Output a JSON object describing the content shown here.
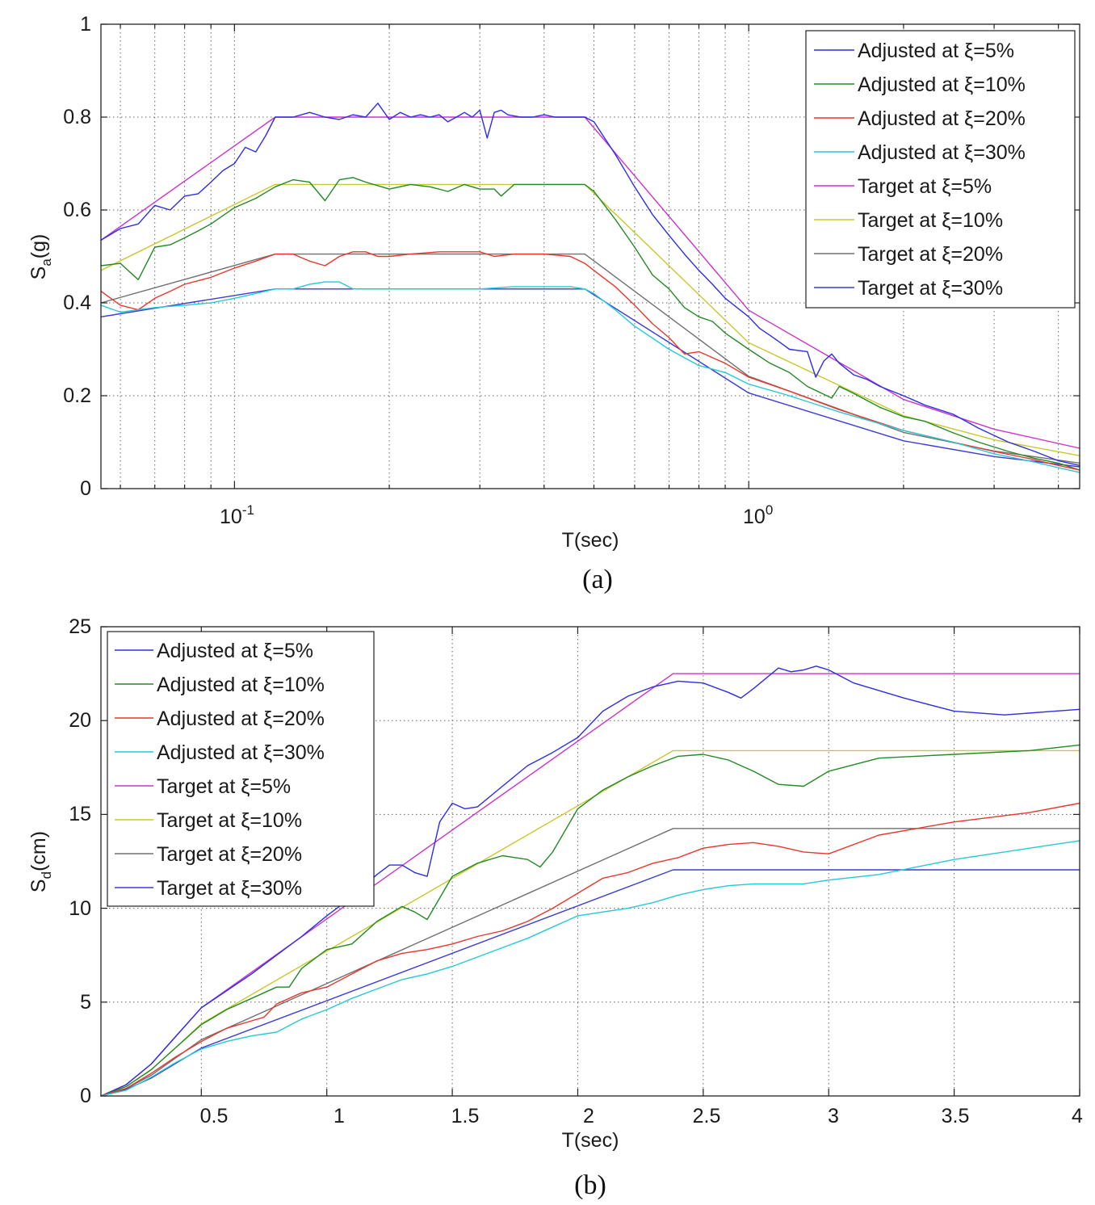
{
  "chart_data": [
    {
      "type": "line",
      "caption": "(a)",
      "xlabel": "T(sec)",
      "ylabel": "S",
      "ylabel_sub": "a",
      "ylabel_unit": "(g)",
      "xscale": "log",
      "xlim": [
        0.055,
        4.4
      ],
      "ylim": [
        0,
        1
      ],
      "xticks": [
        {
          "base": "10",
          "exp": "-1",
          "value": 0.1
        },
        {
          "base": "10",
          "exp": "0",
          "value": 1
        }
      ],
      "yticks": [
        "0",
        "0.2",
        "0.4",
        "0.6",
        "0.8",
        "1"
      ],
      "grid": true,
      "legend_position": "top-right",
      "series": [
        {
          "name": "Adjusted at ξ=5%",
          "color": "#2d2de8",
          "x": [
            0.055,
            0.06,
            0.065,
            0.07,
            0.075,
            0.08,
            0.085,
            0.09,
            0.095,
            0.1,
            0.105,
            0.11,
            0.115,
            0.12,
            0.13,
            0.14,
            0.15,
            0.16,
            0.17,
            0.18,
            0.19,
            0.2,
            0.21,
            0.22,
            0.23,
            0.24,
            0.25,
            0.26,
            0.27,
            0.28,
            0.29,
            0.3,
            0.31,
            0.32,
            0.33,
            0.34,
            0.36,
            0.38,
            0.4,
            0.42,
            0.45,
            0.48,
            0.5,
            0.55,
            0.6,
            0.65,
            0.7,
            0.75,
            0.8,
            0.85,
            0.9,
            1.0,
            1.05,
            1.1,
            1.15,
            1.2,
            1.3,
            1.35,
            1.4,
            1.45,
            1.5,
            1.6,
            1.7,
            1.8,
            2.0,
            2.2,
            2.5,
            2.8,
            3.2,
            3.6,
            4.0,
            4.4
          ],
          "y": [
            0.535,
            0.56,
            0.57,
            0.61,
            0.6,
            0.63,
            0.635,
            0.66,
            0.685,
            0.7,
            0.735,
            0.725,
            0.76,
            0.8,
            0.8,
            0.81,
            0.8,
            0.795,
            0.805,
            0.8,
            0.83,
            0.795,
            0.81,
            0.8,
            0.805,
            0.8,
            0.805,
            0.79,
            0.8,
            0.81,
            0.8,
            0.815,
            0.755,
            0.81,
            0.815,
            0.805,
            0.8,
            0.8,
            0.805,
            0.8,
            0.8,
            0.8,
            0.79,
            0.72,
            0.65,
            0.59,
            0.545,
            0.505,
            0.47,
            0.44,
            0.41,
            0.37,
            0.345,
            0.33,
            0.315,
            0.3,
            0.295,
            0.24,
            0.275,
            0.29,
            0.27,
            0.245,
            0.235,
            0.22,
            0.2,
            0.18,
            0.16,
            0.13,
            0.1,
            0.08,
            0.06,
            0.05
          ]
        },
        {
          "name": "Adjusted at ξ=10%",
          "color": "#238a23",
          "x": [
            0.055,
            0.06,
            0.065,
            0.07,
            0.075,
            0.08,
            0.085,
            0.09,
            0.1,
            0.11,
            0.12,
            0.13,
            0.14,
            0.15,
            0.16,
            0.17,
            0.18,
            0.2,
            0.22,
            0.24,
            0.26,
            0.28,
            0.3,
            0.32,
            0.33,
            0.35,
            0.38,
            0.4,
            0.45,
            0.48,
            0.5,
            0.55,
            0.6,
            0.65,
            0.7,
            0.75,
            0.8,
            0.85,
            0.9,
            1.0,
            1.1,
            1.2,
            1.3,
            1.45,
            1.5,
            1.6,
            1.8,
            2.0,
            2.2,
            2.5,
            2.8,
            3.2,
            3.6,
            4.0,
            4.4
          ],
          "y": [
            0.48,
            0.485,
            0.45,
            0.52,
            0.525,
            0.54,
            0.555,
            0.57,
            0.605,
            0.625,
            0.65,
            0.665,
            0.66,
            0.62,
            0.665,
            0.67,
            0.66,
            0.645,
            0.655,
            0.65,
            0.64,
            0.655,
            0.645,
            0.645,
            0.63,
            0.655,
            0.655,
            0.655,
            0.655,
            0.655,
            0.64,
            0.58,
            0.52,
            0.46,
            0.43,
            0.39,
            0.37,
            0.36,
            0.335,
            0.3,
            0.27,
            0.25,
            0.22,
            0.195,
            0.22,
            0.205,
            0.175,
            0.155,
            0.145,
            0.12,
            0.1,
            0.08,
            0.065,
            0.055,
            0.04
          ]
        },
        {
          "name": "Adjusted at ξ=20%",
          "color": "#e8372d",
          "x": [
            0.055,
            0.06,
            0.065,
            0.07,
            0.075,
            0.08,
            0.09,
            0.1,
            0.11,
            0.12,
            0.13,
            0.14,
            0.15,
            0.16,
            0.17,
            0.18,
            0.19,
            0.2,
            0.22,
            0.25,
            0.28,
            0.3,
            0.32,
            0.35,
            0.4,
            0.45,
            0.48,
            0.5,
            0.55,
            0.6,
            0.65,
            0.7,
            0.75,
            0.8,
            0.9,
            1.0,
            1.2,
            1.5,
            2.0,
            2.5,
            3.0,
            3.5,
            4.0,
            4.4
          ],
          "y": [
            0.425,
            0.395,
            0.385,
            0.41,
            0.425,
            0.44,
            0.455,
            0.475,
            0.49,
            0.505,
            0.505,
            0.49,
            0.48,
            0.5,
            0.51,
            0.51,
            0.5,
            0.5,
            0.505,
            0.51,
            0.51,
            0.51,
            0.5,
            0.505,
            0.505,
            0.5,
            0.485,
            0.47,
            0.435,
            0.395,
            0.355,
            0.325,
            0.29,
            0.295,
            0.27,
            0.24,
            0.21,
            0.17,
            0.125,
            0.1,
            0.08,
            0.065,
            0.05,
            0.04
          ]
        },
        {
          "name": "Adjusted at ξ=30%",
          "color": "#25c9d6",
          "x": [
            0.055,
            0.06,
            0.065,
            0.07,
            0.08,
            0.09,
            0.1,
            0.11,
            0.12,
            0.13,
            0.14,
            0.15,
            0.16,
            0.17,
            0.18,
            0.2,
            0.25,
            0.3,
            0.35,
            0.4,
            0.45,
            0.48,
            0.5,
            0.55,
            0.6,
            0.7,
            0.8,
            0.9,
            1.0,
            1.2,
            1.5,
            2.0,
            2.5,
            3.0,
            3.5,
            4.0,
            4.4
          ],
          "y": [
            0.395,
            0.38,
            0.385,
            0.39,
            0.395,
            0.4,
            0.41,
            0.42,
            0.43,
            0.43,
            0.44,
            0.445,
            0.445,
            0.43,
            0.43,
            0.43,
            0.43,
            0.43,
            0.435,
            0.435,
            0.435,
            0.43,
            0.42,
            0.385,
            0.35,
            0.3,
            0.265,
            0.25,
            0.225,
            0.2,
            0.165,
            0.125,
            0.1,
            0.075,
            0.06,
            0.045,
            0.035
          ]
        },
        {
          "name": "Target at ξ=5%",
          "color": "#cc33cc",
          "x": [
            0.055,
            0.12,
            0.48,
            1.0,
            2.0,
            3.0,
            4.4
          ],
          "y": [
            0.535,
            0.8,
            0.8,
            0.384,
            0.192,
            0.128,
            0.087
          ]
        },
        {
          "name": "Target at ξ=10%",
          "color": "#c9c92c",
          "x": [
            0.055,
            0.12,
            0.48,
            1.0,
            2.0,
            3.0,
            4.4
          ],
          "y": [
            0.47,
            0.655,
            0.655,
            0.314,
            0.157,
            0.105,
            0.071
          ]
        },
        {
          "name": "Target at ξ=20%",
          "color": "#707070",
          "x": [
            0.055,
            0.12,
            0.48,
            1.0,
            2.0,
            3.0,
            4.4
          ],
          "y": [
            0.4,
            0.505,
            0.505,
            0.242,
            0.121,
            0.081,
            0.055
          ]
        },
        {
          "name": "Target at ξ=30%",
          "color": "#3b3bd9",
          "x": [
            0.055,
            0.12,
            0.48,
            1.0,
            2.0,
            3.0,
            4.4
          ],
          "y": [
            0.37,
            0.43,
            0.43,
            0.206,
            0.103,
            0.069,
            0.047
          ]
        }
      ]
    },
    {
      "type": "line",
      "caption": "(b)",
      "xlabel": "T(sec)",
      "ylabel": "S",
      "ylabel_sub": "d",
      "ylabel_unit": "(cm)",
      "xscale": "linear",
      "xlim": [
        0.1,
        4
      ],
      "ylim": [
        0,
        25
      ],
      "xticks": [
        "0.5",
        "1",
        "1.5",
        "2",
        "2.5",
        "3",
        "3.5",
        "4"
      ],
      "yticks": [
        "0",
        "5",
        "10",
        "15",
        "20",
        "25"
      ],
      "grid": true,
      "legend_position": "top-left",
      "series": [
        {
          "name": "Adjusted at ξ=5%",
          "color": "#2d2de8",
          "x": [
            0.1,
            0.2,
            0.3,
            0.4,
            0.5,
            0.6,
            0.7,
            0.8,
            0.9,
            1.0,
            1.1,
            1.2,
            1.25,
            1.3,
            1.35,
            1.4,
            1.45,
            1.5,
            1.55,
            1.6,
            1.7,
            1.8,
            1.9,
            2.0,
            2.1,
            2.2,
            2.3,
            2.4,
            2.5,
            2.6,
            2.65,
            2.7,
            2.8,
            2.85,
            2.9,
            2.95,
            3.0,
            3.1,
            3.3,
            3.5,
            3.7,
            3.9,
            4.0
          ],
          "y": [
            0,
            0.6,
            1.7,
            3.2,
            4.7,
            5.6,
            6.5,
            7.5,
            8.5,
            9.6,
            10.6,
            11.8,
            12.3,
            12.3,
            11.9,
            11.7,
            14.6,
            15.6,
            15.3,
            15.4,
            16.5,
            17.6,
            18.3,
            19.1,
            20.5,
            21.3,
            21.8,
            22.1,
            22.0,
            21.5,
            21.2,
            21.7,
            22.8,
            22.6,
            22.7,
            22.9,
            22.7,
            22.0,
            21.2,
            20.5,
            20.3,
            20.5,
            20.6
          ]
        },
        {
          "name": "Adjusted at ξ=10%",
          "color": "#238a23",
          "x": [
            0.1,
            0.2,
            0.3,
            0.4,
            0.5,
            0.6,
            0.7,
            0.8,
            0.85,
            0.9,
            1.0,
            1.1,
            1.2,
            1.3,
            1.35,
            1.4,
            1.5,
            1.6,
            1.7,
            1.8,
            1.85,
            1.9,
            2.0,
            2.1,
            2.2,
            2.3,
            2.4,
            2.5,
            2.6,
            2.7,
            2.8,
            2.9,
            3.0,
            3.2,
            3.5,
            3.8,
            4.0
          ],
          "y": [
            0,
            0.5,
            1.4,
            2.6,
            3.8,
            4.6,
            5.2,
            5.8,
            5.8,
            6.8,
            7.8,
            8.1,
            9.3,
            10.1,
            9.8,
            9.4,
            11.7,
            12.4,
            12.8,
            12.6,
            12.2,
            13.0,
            15.3,
            16.3,
            17.0,
            17.6,
            18.1,
            18.2,
            17.9,
            17.3,
            16.6,
            16.5,
            17.3,
            18.0,
            18.2,
            18.4,
            18.7
          ]
        },
        {
          "name": "Adjusted at ξ=20%",
          "color": "#e8372d",
          "x": [
            0.1,
            0.2,
            0.3,
            0.4,
            0.5,
            0.6,
            0.7,
            0.75,
            0.8,
            0.9,
            1.0,
            1.1,
            1.2,
            1.3,
            1.4,
            1.5,
            1.6,
            1.7,
            1.8,
            1.9,
            2.0,
            2.1,
            2.2,
            2.3,
            2.4,
            2.5,
            2.6,
            2.7,
            2.8,
            2.9,
            3.0,
            3.2,
            3.5,
            3.8,
            4.0
          ],
          "y": [
            0,
            0.4,
            1.2,
            2.1,
            2.9,
            3.6,
            4.0,
            4.2,
            4.9,
            5.5,
            5.8,
            6.5,
            7.2,
            7.6,
            7.8,
            8.1,
            8.5,
            8.8,
            9.3,
            10.0,
            10.8,
            11.6,
            11.9,
            12.4,
            12.7,
            13.2,
            13.4,
            13.5,
            13.3,
            13.0,
            12.9,
            13.9,
            14.6,
            15.1,
            15.6
          ]
        },
        {
          "name": "Adjusted at ξ=30%",
          "color": "#25c9d6",
          "x": [
            0.1,
            0.2,
            0.3,
            0.4,
            0.5,
            0.6,
            0.7,
            0.8,
            0.9,
            1.0,
            1.1,
            1.2,
            1.3,
            1.4,
            1.5,
            1.6,
            1.7,
            1.8,
            1.9,
            2.0,
            2.1,
            2.2,
            2.3,
            2.4,
            2.5,
            2.6,
            2.7,
            2.8,
            2.9,
            3.0,
            3.2,
            3.5,
            3.8,
            4.0
          ],
          "y": [
            0,
            0.3,
            1.0,
            1.8,
            2.5,
            2.9,
            3.2,
            3.4,
            4.1,
            4.6,
            5.2,
            5.7,
            6.2,
            6.5,
            6.9,
            7.4,
            7.9,
            8.4,
            9.0,
            9.6,
            9.8,
            10.0,
            10.3,
            10.7,
            11.0,
            11.2,
            11.3,
            11.3,
            11.3,
            11.5,
            11.8,
            12.6,
            13.2,
            13.6
          ]
        },
        {
          "name": "Target at ξ=5%",
          "color": "#cc33cc",
          "x": [
            0.1,
            0.2,
            0.3,
            0.4,
            0.5,
            2.38,
            4.0
          ],
          "y": [
            0,
            0.6,
            1.7,
            3.2,
            4.7,
            22.5,
            22.5
          ]
        },
        {
          "name": "Target at ξ=10%",
          "color": "#c9c92c",
          "x": [
            0.1,
            0.2,
            0.3,
            0.4,
            0.5,
            2.38,
            4.0
          ],
          "y": [
            0,
            0.5,
            1.4,
            2.6,
            3.85,
            18.4,
            18.4
          ]
        },
        {
          "name": "Target at ξ=20%",
          "color": "#707070",
          "x": [
            0.1,
            0.2,
            0.3,
            0.4,
            0.5,
            2.38,
            4.0
          ],
          "y": [
            0,
            0.4,
            1.1,
            2.05,
            3.0,
            14.25,
            14.25
          ]
        },
        {
          "name": "Target at ξ=30%",
          "color": "#3b3bd9",
          "x": [
            0.1,
            0.2,
            0.3,
            0.4,
            0.5,
            2.38,
            4.0
          ],
          "y": [
            0,
            0.35,
            0.95,
            1.75,
            2.55,
            12.05,
            12.05
          ]
        }
      ]
    }
  ]
}
